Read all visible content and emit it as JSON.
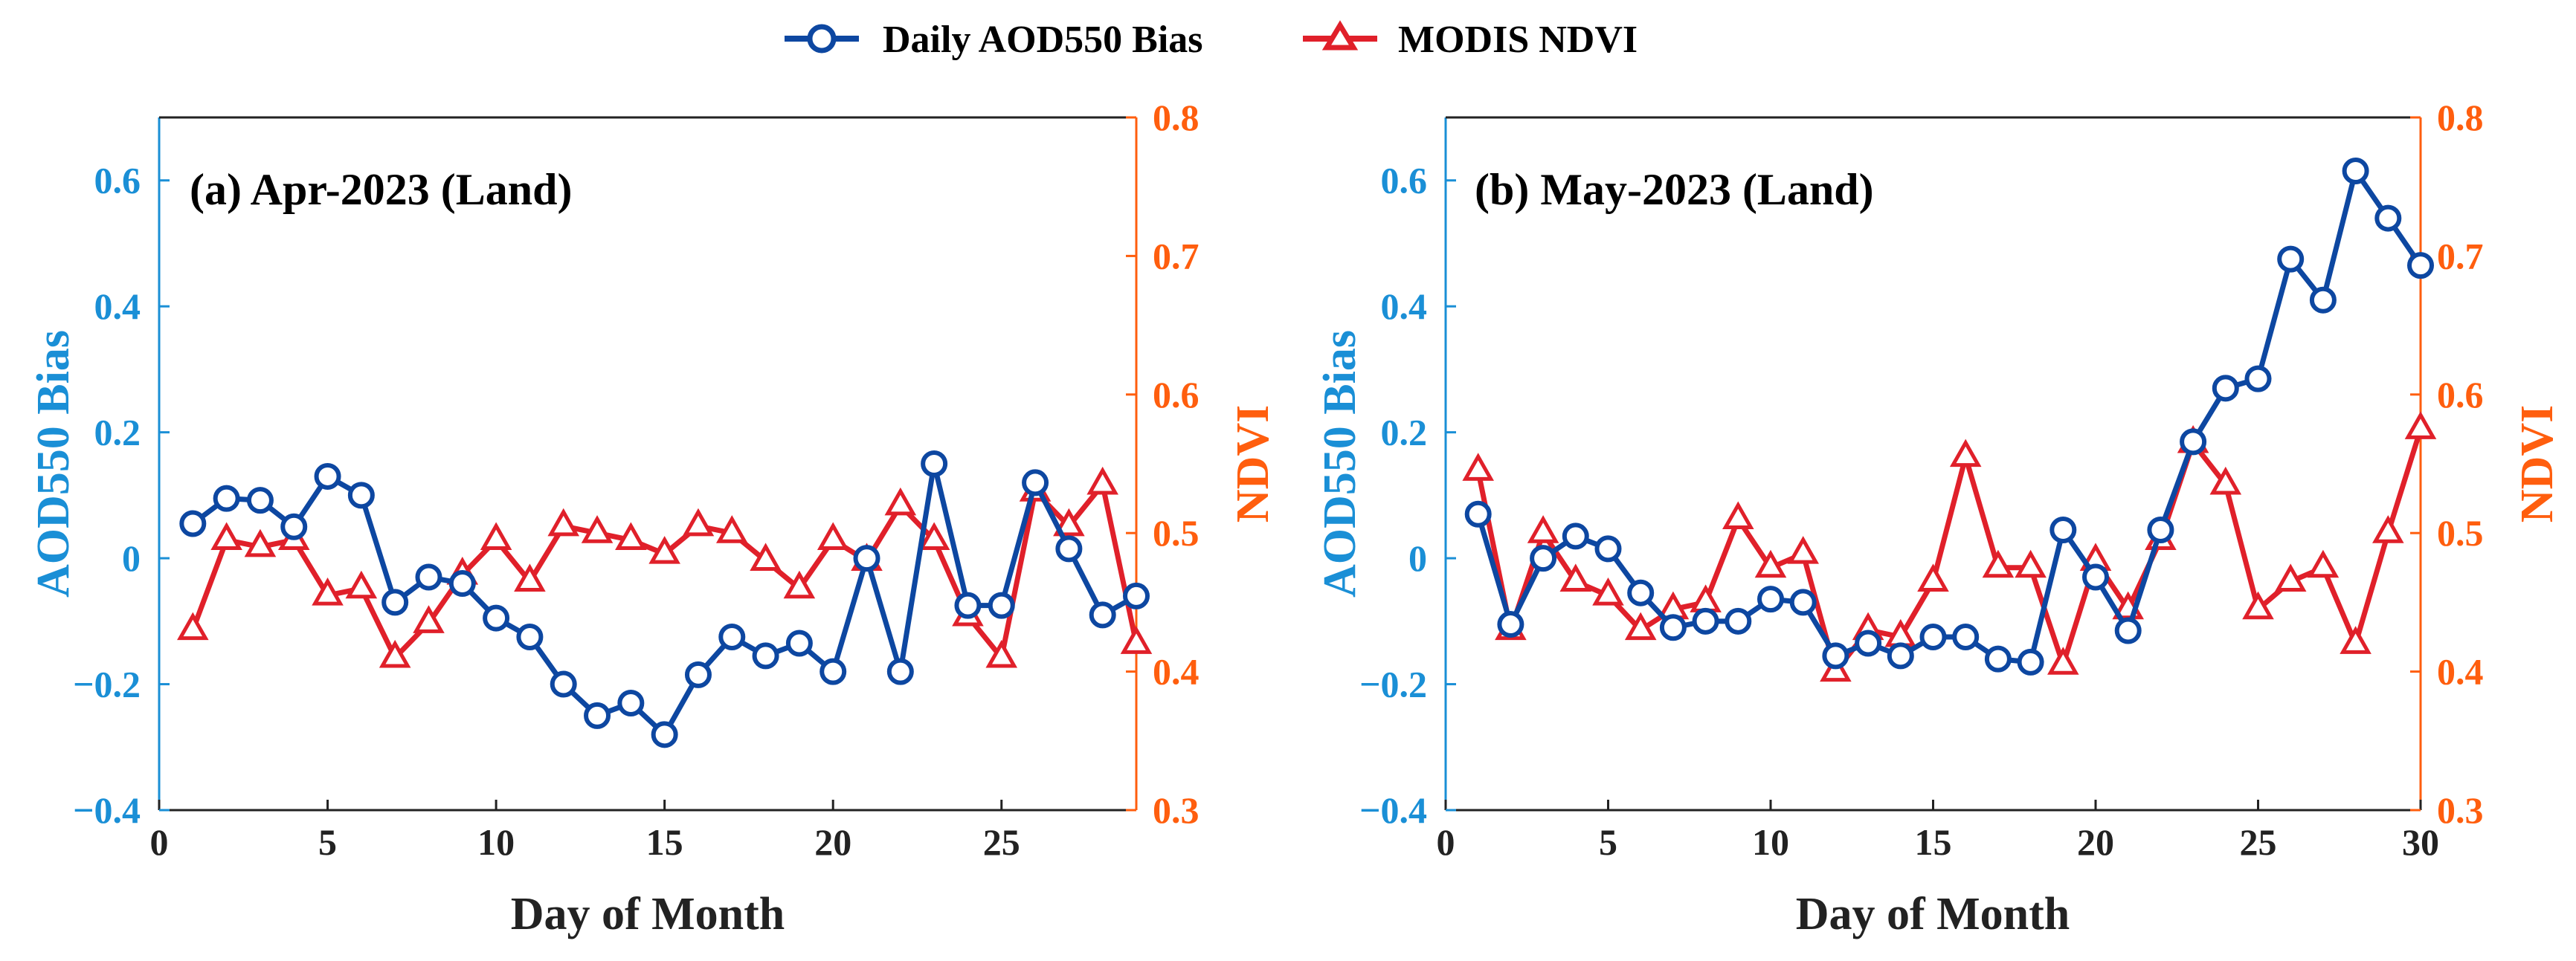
{
  "legend": {
    "entries": [
      {
        "label": "Daily AOD550 Bias",
        "marker": "circle",
        "color": "#0d47a1"
      },
      {
        "label": "MODIS NDVI",
        "marker": "triangle",
        "color": "#e0202a"
      }
    ]
  },
  "colors": {
    "aod_series": "#0d47a1",
    "ndvi_series": "#e0202a",
    "left_axis": "#1a8fd6",
    "right_axis": "#ff5e0e",
    "bottom_axis": "#222222"
  },
  "chart_data": [
    {
      "type": "line",
      "title": "(a) Apr-2023 (Land)",
      "xlabel": "Day of Month",
      "ylabel": "AOD550 Bias",
      "y2label": "NDVI",
      "xlim": [
        0,
        29
      ],
      "ylim": [
        -0.4,
        0.7
      ],
      "y2lim": [
        0.3,
        0.8
      ],
      "xticks": [
        0,
        5,
        10,
        15,
        20,
        25
      ],
      "yticks": [
        -0.4,
        -0.2,
        0,
        0.2,
        0.4,
        0.6
      ],
      "y2ticks": [
        0.3,
        0.4,
        0.5,
        0.6,
        0.7,
        0.8
      ],
      "xtick_labels": [
        "0",
        "5",
        "10",
        "15",
        "20",
        "25"
      ],
      "ytick_labels": [
        "−0.4",
        "−0.2",
        "0",
        "0.2",
        "0.4",
        "0.6"
      ],
      "y2tick_labels": [
        "0.3",
        "0.4",
        "0.5",
        "0.6",
        "0.7",
        "0.8"
      ],
      "x": [
        1,
        2,
        3,
        4,
        5,
        6,
        7,
        8,
        9,
        10,
        11,
        12,
        13,
        14,
        15,
        16,
        17,
        18,
        19,
        20,
        21,
        22,
        23,
        24,
        25,
        26,
        27,
        28,
        29
      ],
      "series": [
        {
          "name": "Daily AOD550 Bias",
          "axis": "left",
          "marker": "circle",
          "values": [
            0.055,
            0.095,
            0.092,
            0.05,
            0.13,
            0.1,
            -0.07,
            -0.03,
            -0.04,
            -0.095,
            -0.125,
            -0.2,
            -0.25,
            -0.23,
            -0.28,
            -0.185,
            -0.125,
            -0.155,
            -0.135,
            -0.18,
            0.0,
            -0.18,
            0.15,
            -0.075,
            -0.075,
            0.12,
            0.015,
            -0.09,
            -0.06
          ]
        },
        {
          "name": "MODIS NDVI",
          "axis": "right",
          "marker": "triangle",
          "values": [
            0.43,
            0.495,
            0.49,
            0.495,
            0.455,
            0.46,
            0.41,
            0.435,
            0.47,
            0.495,
            0.465,
            0.505,
            0.5,
            0.495,
            0.485,
            0.505,
            0.5,
            0.48,
            0.46,
            0.495,
            0.48,
            0.52,
            0.495,
            0.44,
            0.41,
            0.53,
            0.505,
            0.535,
            0.42
          ]
        }
      ]
    },
    {
      "type": "line",
      "title": "(b) May-2023 (Land)",
      "xlabel": "Day of Month",
      "ylabel": "AOD550 Bias",
      "y2label": "NDVI",
      "xlim": [
        0,
        30
      ],
      "ylim": [
        -0.4,
        0.7
      ],
      "y2lim": [
        0.3,
        0.8
      ],
      "xticks": [
        0,
        5,
        10,
        15,
        20,
        25,
        30
      ],
      "yticks": [
        -0.4,
        -0.2,
        0,
        0.2,
        0.4,
        0.6
      ],
      "y2ticks": [
        0.3,
        0.4,
        0.5,
        0.6,
        0.7,
        0.8
      ],
      "xtick_labels": [
        "0",
        "5",
        "10",
        "15",
        "20",
        "25",
        "30"
      ],
      "ytick_labels": [
        "−0.4",
        "−0.2",
        "0",
        "0.2",
        "0.4",
        "0.6"
      ],
      "y2tick_labels": [
        "0.3",
        "0.4",
        "0.5",
        "0.6",
        "0.7",
        "0.8"
      ],
      "x": [
        1,
        2,
        3,
        4,
        5,
        6,
        7,
        8,
        9,
        10,
        11,
        12,
        13,
        14,
        15,
        16,
        17,
        18,
        19,
        20,
        21,
        22,
        23,
        24,
        25,
        26,
        27,
        28,
        29,
        30
      ],
      "series": [
        {
          "name": "Daily AOD550 Bias",
          "axis": "left",
          "marker": "circle",
          "values": [
            0.07,
            -0.105,
            0.0,
            0.035,
            0.015,
            -0.055,
            -0.11,
            -0.1,
            -0.1,
            -0.065,
            -0.07,
            -0.155,
            -0.135,
            -0.155,
            -0.125,
            -0.125,
            -0.16,
            -0.165,
            0.045,
            -0.03,
            -0.115,
            0.045,
            0.185,
            0.27,
            0.285,
            0.475,
            0.41,
            0.615,
            0.54,
            0.465
          ]
        },
        {
          "name": "MODIS NDVI",
          "axis": "right",
          "marker": "triangle",
          "values": [
            0.545,
            0.43,
            0.5,
            0.465,
            0.455,
            0.43,
            0.445,
            0.45,
            0.51,
            0.475,
            0.485,
            0.4,
            0.43,
            0.425,
            0.465,
            0.555,
            0.475,
            0.475,
            0.405,
            0.48,
            0.445,
            0.495,
            0.565,
            0.535,
            0.445,
            0.465,
            0.475,
            0.42,
            0.5,
            0.575
          ]
        }
      ]
    }
  ]
}
